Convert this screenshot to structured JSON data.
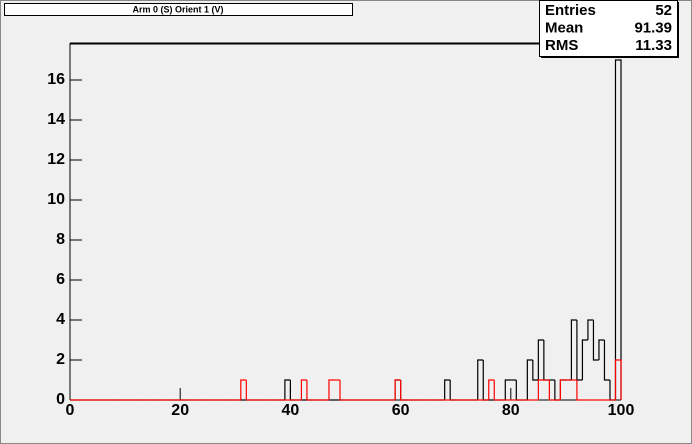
{
  "chart_data": {
    "type": "histogram",
    "title": "Arm 0 (S) Orient 1 (V)",
    "bins": [
      0,
      1,
      2,
      3,
      4,
      5,
      6,
      7,
      8,
      9,
      10,
      11,
      12,
      13,
      14,
      15,
      16,
      17,
      18,
      19,
      20,
      21,
      22,
      23,
      24,
      25,
      26,
      27,
      28,
      29,
      30,
      31,
      32,
      33,
      34,
      35,
      36,
      37,
      38,
      39,
      40,
      41,
      42,
      43,
      44,
      45,
      46,
      47,
      48,
      49,
      50,
      51,
      52,
      53,
      54,
      55,
      56,
      57,
      58,
      59,
      60,
      61,
      62,
      63,
      64,
      65,
      66,
      67,
      68,
      69,
      70,
      71,
      72,
      73,
      74,
      75,
      76,
      77,
      78,
      79,
      80,
      81,
      82,
      83,
      84,
      85,
      86,
      87,
      88,
      89,
      90,
      91,
      92,
      93,
      94,
      95,
      96,
      97,
      98,
      99,
      100
    ],
    "series": [
      {
        "color": "#000000",
        "values": [
          0,
          0,
          0,
          0,
          0,
          0,
          0,
          0,
          0,
          0,
          0,
          0,
          0,
          0,
          0,
          0,
          0,
          0,
          0,
          0,
          0,
          0,
          0,
          0,
          0,
          0,
          0,
          0,
          0,
          0,
          0,
          0,
          0,
          0,
          0,
          0,
          0,
          0,
          0,
          1,
          0,
          0,
          0,
          0,
          0,
          0,
          0,
          0,
          0,
          0,
          0,
          0,
          0,
          0,
          0,
          0,
          0,
          0,
          0,
          1,
          0,
          0,
          0,
          0,
          0,
          0,
          0,
          0,
          1,
          0,
          0,
          0,
          0,
          0,
          2,
          0,
          0,
          0,
          0,
          1,
          1,
          0,
          0,
          2,
          1,
          3,
          1,
          1,
          0,
          1,
          1,
          4,
          1,
          3,
          4,
          2,
          3,
          1,
          0,
          17
        ]
      },
      {
        "color": "#ff0000",
        "values": [
          0,
          0,
          0,
          0,
          0,
          0,
          0,
          0,
          0,
          0,
          0,
          0,
          0,
          0,
          0,
          0,
          0,
          0,
          0,
          0,
          0,
          0,
          0,
          0,
          0,
          0,
          0,
          0,
          0,
          0,
          0,
          1,
          0,
          0,
          0,
          0,
          0,
          0,
          0,
          0,
          0,
          0,
          1,
          0,
          0,
          0,
          0,
          1,
          1,
          0,
          0,
          0,
          0,
          0,
          0,
          0,
          0,
          0,
          0,
          1,
          0,
          0,
          0,
          0,
          0,
          0,
          0,
          0,
          0,
          0,
          0,
          0,
          0,
          0,
          0,
          0,
          1,
          0,
          0,
          0,
          0,
          0,
          0,
          0,
          0,
          1,
          1,
          0,
          0,
          1,
          1,
          1,
          0,
          0,
          0,
          0,
          0,
          0,
          0,
          2
        ]
      }
    ],
    "xlim": [
      0,
      100
    ],
    "xticks": [
      0,
      20,
      40,
      60,
      80,
      100
    ],
    "ylim": [
      0,
      17.85
    ],
    "yticks": [
      0,
      2,
      4,
      6,
      8,
      10,
      12,
      14,
      16
    ],
    "stats": [
      {
        "label": "Entries",
        "value": 52
      },
      {
        "label": "Mean",
        "value": 91.39
      },
      {
        "label": "RMS",
        "value": 11.33
      }
    ]
  }
}
